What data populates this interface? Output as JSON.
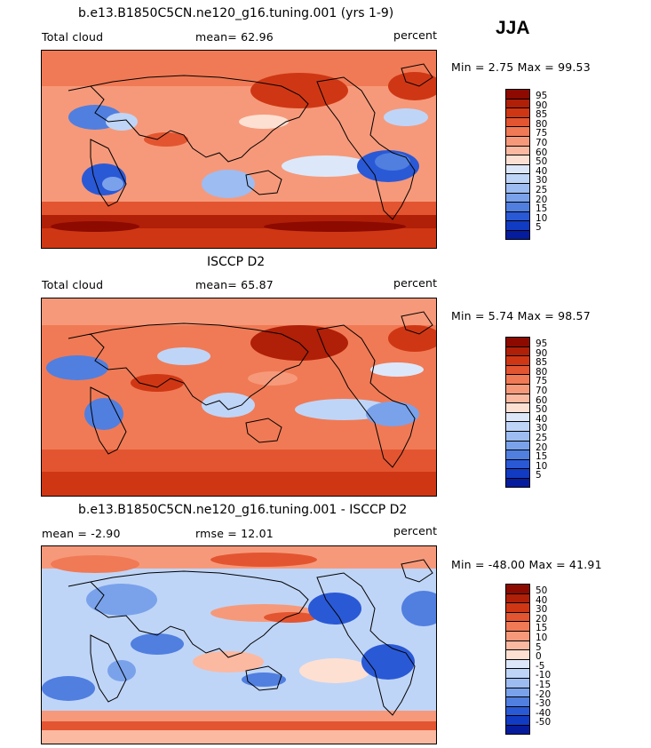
{
  "season": "JJA",
  "panels": [
    {
      "title": "b.e13.B1850C5CN.ne120_g16.tuning.001 (yrs 1-9)",
      "left_label": "Total cloud",
      "stat1": "mean=  62.96",
      "stat2": "",
      "units": "percent",
      "minmax": "Min =   2.75 Max =  99.53",
      "legend_labels": [
        "95",
        "90",
        "85",
        "80",
        "75",
        "70",
        "60",
        "50",
        "40",
        "30",
        "25",
        "20",
        "15",
        "10",
        "5"
      ],
      "legend_colors": [
        "#8c0a00",
        "#b01f07",
        "#cf3714",
        "#e35530",
        "#f07a55",
        "#f6997a",
        "#fbb9a1",
        "#fde0d2",
        "#dce8fa",
        "#bfd5f7",
        "#9dbcf1",
        "#7aa2eb",
        "#507fe0",
        "#2a59d6",
        "#123bc3",
        "#061c9e"
      ]
    },
    {
      "title": "ISCCP D2",
      "left_label": "Total cloud",
      "stat1": "mean=  65.87",
      "stat2": "",
      "units": "percent",
      "minmax": "Min =   5.74 Max =  98.57",
      "legend_labels": [
        "95",
        "90",
        "85",
        "80",
        "75",
        "70",
        "60",
        "50",
        "40",
        "30",
        "25",
        "20",
        "15",
        "10",
        "5"
      ],
      "legend_colors": [
        "#8c0a00",
        "#b01f07",
        "#cf3714",
        "#e35530",
        "#f07a55",
        "#f6997a",
        "#fbb9a1",
        "#fde0d2",
        "#dce8fa",
        "#bfd5f7",
        "#9dbcf1",
        "#7aa2eb",
        "#507fe0",
        "#2a59d6",
        "#123bc3",
        "#061c9e"
      ]
    },
    {
      "title": "b.e13.B1850C5CN.ne120_g16.tuning.001 - ISCCP D2",
      "left_label": "mean =  -2.90",
      "stat1": "rmse =  12.01",
      "stat2": "",
      "units": "percent",
      "minmax": "Min = -48.00 Max =  41.91",
      "legend_labels": [
        "50",
        "40",
        "30",
        "20",
        "15",
        "10",
        "5",
        "0",
        "-5",
        "-10",
        "-15",
        "-20",
        "-30",
        "-40",
        "-50"
      ],
      "legend_colors": [
        "#8c0a00",
        "#b01f07",
        "#cf3714",
        "#e35530",
        "#f07a55",
        "#f6997a",
        "#fbb9a1",
        "#fde0d2",
        "#dce8fa",
        "#bfd5f7",
        "#9dbcf1",
        "#7aa2eb",
        "#507fe0",
        "#2a59d6",
        "#123bc3",
        "#061c9e"
      ]
    }
  ]
}
